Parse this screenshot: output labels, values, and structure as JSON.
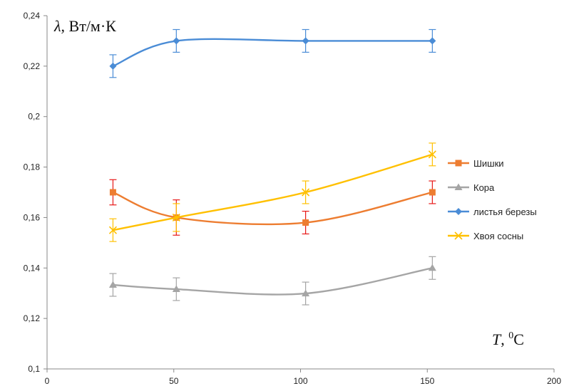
{
  "chart_data": {
    "type": "line",
    "title": "",
    "ylabel_symbol": "λ",
    "ylabel_units": ", Вт/м·К",
    "xlabel_symbol": "T",
    "xlabel_sep": ", ",
    "xlabel_sup": "0",
    "xlabel_unit": "C",
    "xlim": [
      0,
      200
    ],
    "ylim": [
      0.1,
      0.24
    ],
    "xticks": [
      0,
      50,
      100,
      150,
      200
    ],
    "xtick_labels": [
      "0",
      "50",
      "100",
      "150",
      "200"
    ],
    "yticks": [
      0.1,
      0.12,
      0.14,
      0.16,
      0.18,
      0.2,
      0.22,
      0.24
    ],
    "ytick_labels": [
      "0,1",
      "0,12",
      "0,14",
      "0,16",
      "0,18",
      "0,2",
      "0,22",
      "0,24"
    ],
    "grid": false,
    "legend_position": "right",
    "series": [
      {
        "name": "Шишки",
        "color": "#ED7D31",
        "marker": "square",
        "x": [
          26,
          51,
          102,
          152
        ],
        "y": [
          0.17,
          0.16,
          0.158,
          0.17
        ],
        "err": [
          0.005,
          0.007,
          0.0045,
          0.0045
        ],
        "err_color": "#E81919"
      },
      {
        "name": "Кора",
        "color": "#A5A5A5",
        "marker": "triangle",
        "x": [
          26,
          51,
          102,
          152
        ],
        "y": [
          0.1333,
          0.1316,
          0.1299,
          0.14
        ],
        "err": [
          0.0045,
          0.0045,
          0.0045,
          0.0045
        ],
        "err_color": "#A5A5A5"
      },
      {
        "name": "листья березы",
        "color": "#4A8CD6",
        "marker": "diamond",
        "x": [
          26,
          51,
          102,
          152
        ],
        "y": [
          0.22,
          0.23,
          0.23,
          0.23
        ],
        "err": [
          0.0045,
          0.0045,
          0.0045,
          0.0045
        ],
        "err_color": "#4A8CD6"
      },
      {
        "name": "Хвоя сосны",
        "color": "#FFC000",
        "marker": "x",
        "x": [
          26,
          51,
          102,
          152
        ],
        "y": [
          0.155,
          0.16,
          0.17,
          0.185
        ],
        "err": [
          0.0045,
          0.0055,
          0.0045,
          0.0045
        ],
        "err_color": "#FFC000"
      }
    ]
  }
}
